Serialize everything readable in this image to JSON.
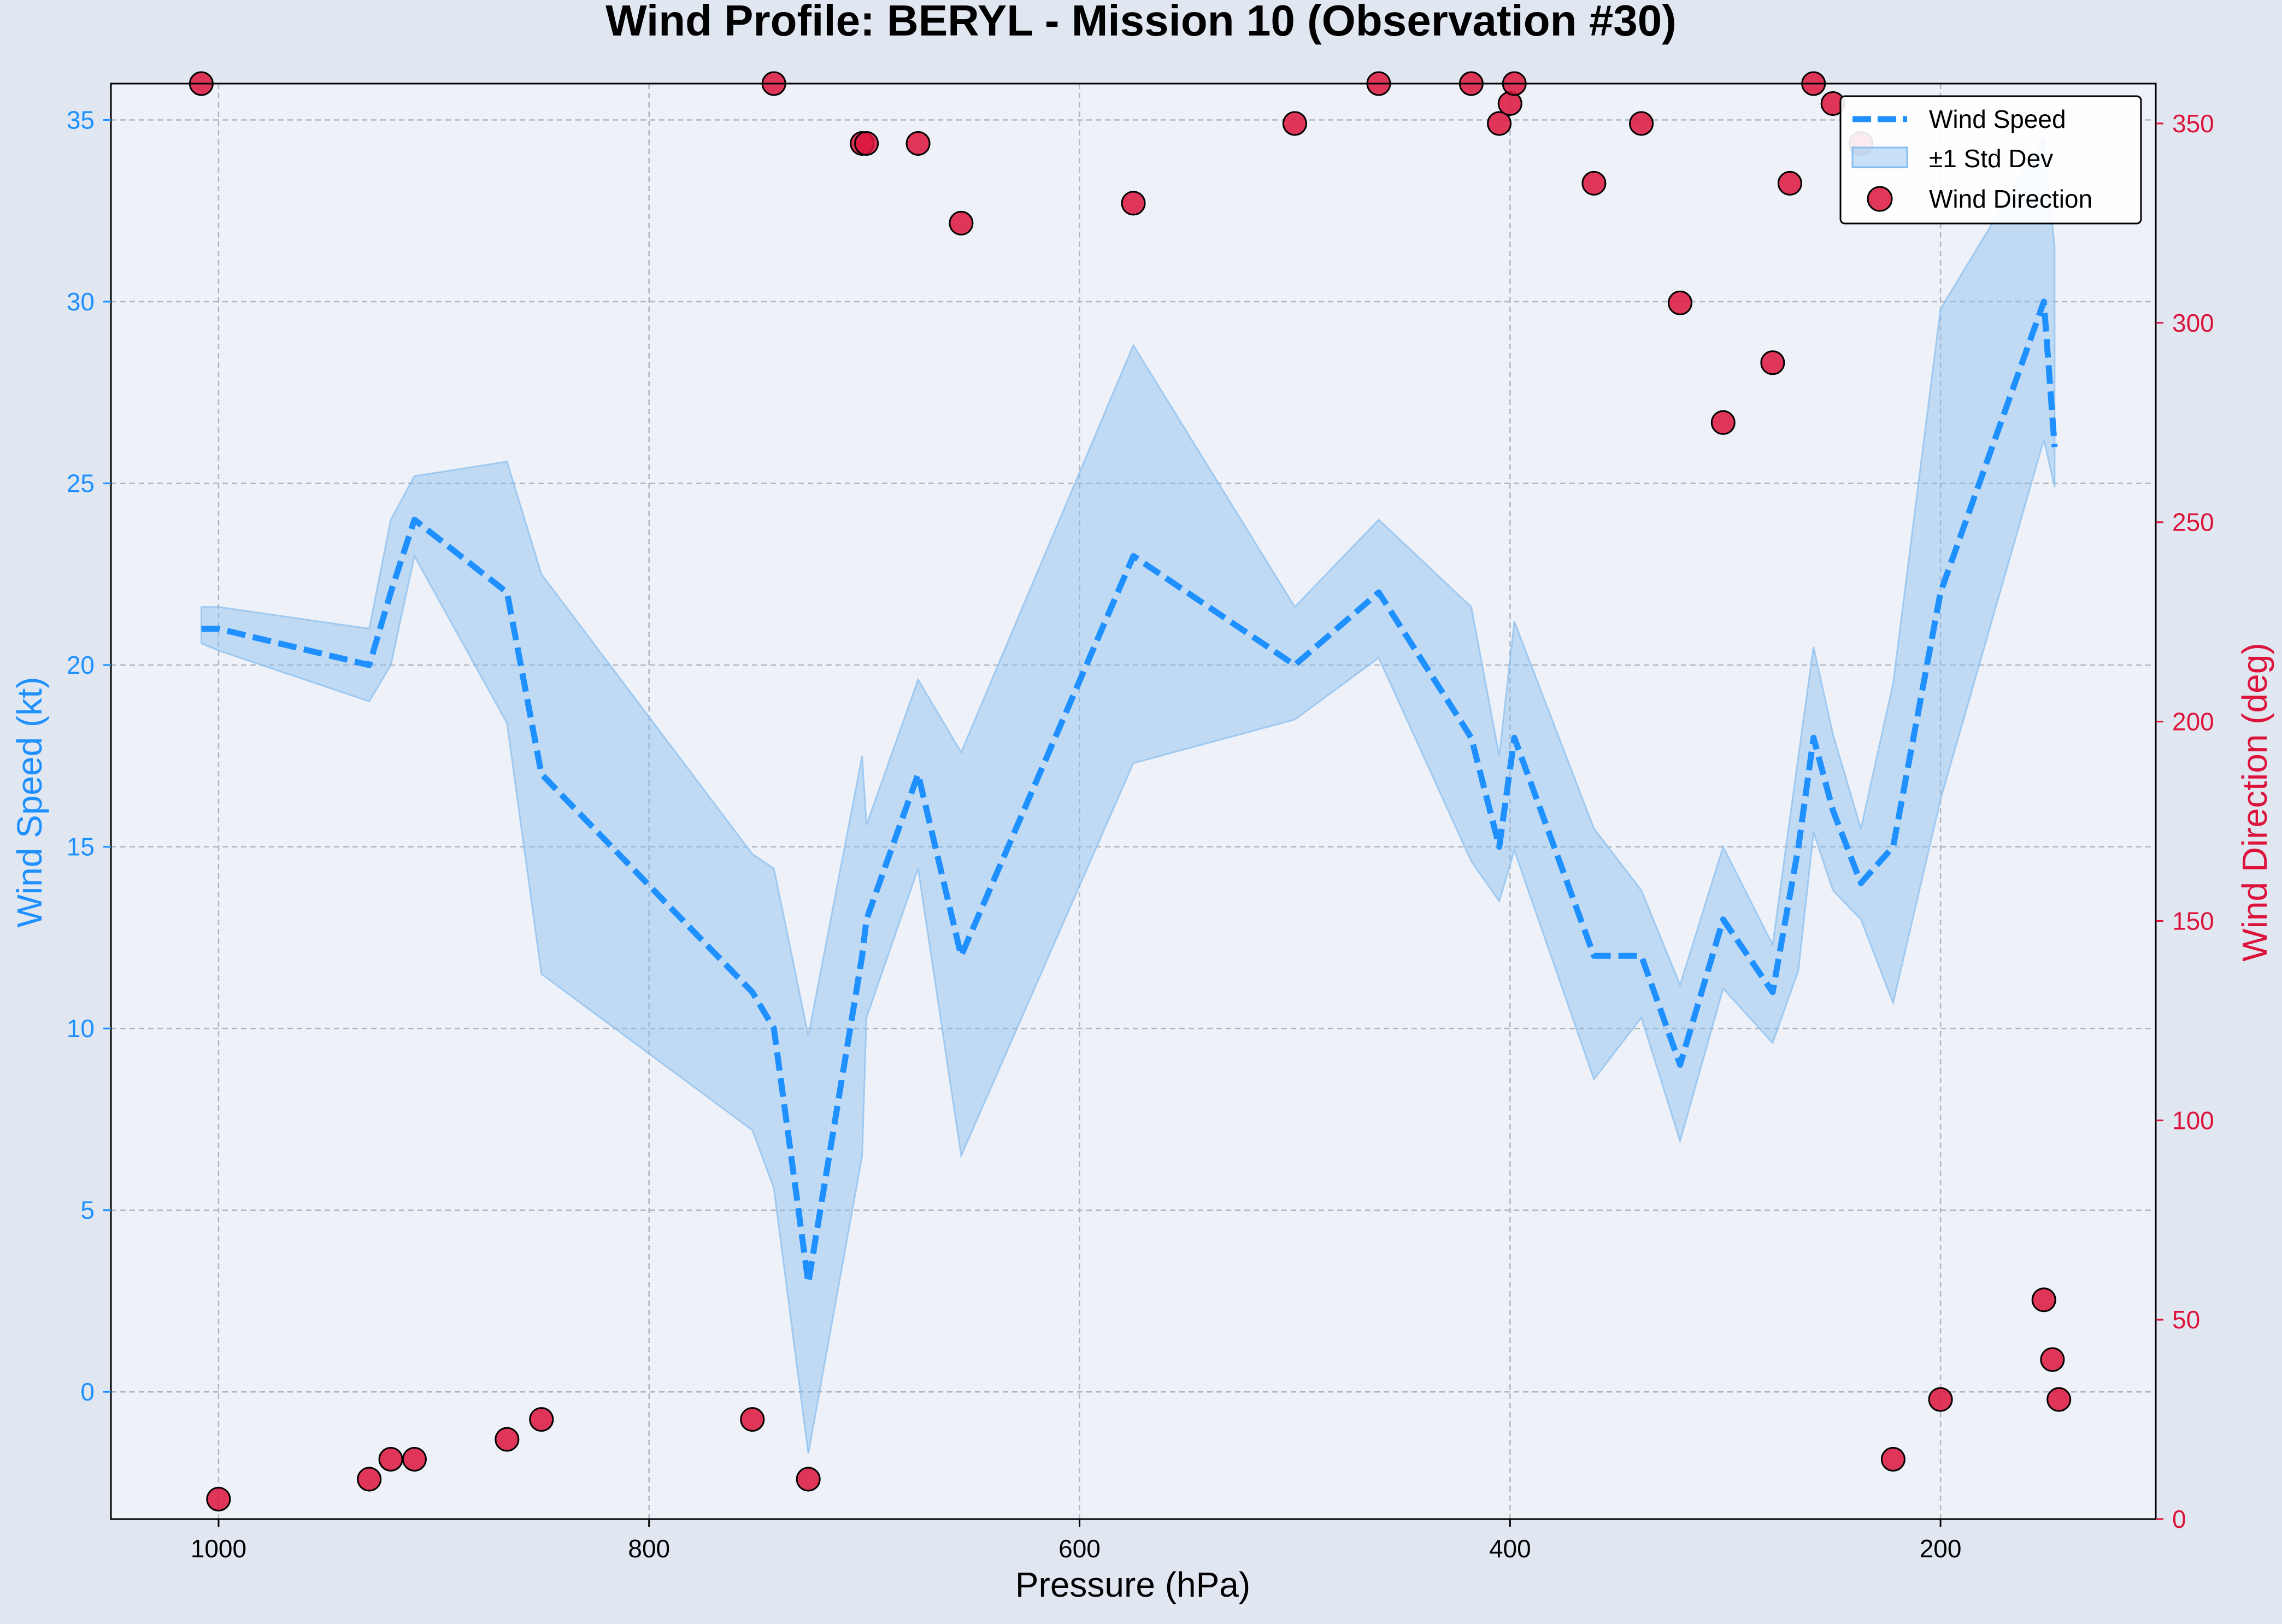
{
  "chart_data": {
    "type": "line",
    "title": "Wind Profile: BERYL - Mission 10 (Observation #30)",
    "xlabel": "Pressure (hPa)",
    "ylabel_left": "Wind Speed (kt)",
    "ylabel_right": "Wind Direction (deg)",
    "x_inverted": true,
    "xlim": [
      1050,
      100
    ],
    "ylim_left": [
      -3.5,
      36
    ],
    "ylim_right": [
      0,
      360
    ],
    "xticks": [
      1000,
      800,
      600,
      400,
      200
    ],
    "yticks_left": [
      0,
      5,
      10,
      15,
      20,
      25,
      30,
      35
    ],
    "yticks_right": [
      0,
      50,
      100,
      150,
      200,
      250,
      300,
      350
    ],
    "grid": true,
    "legend_position": "top-right",
    "colors": {
      "speed": "#1e90ff",
      "band": "#87bdf0",
      "direction": "#dc143c",
      "plot_bg": "#eef2f8",
      "figure_bg": "#e1e7f0",
      "grid": "#b0b6bf"
    },
    "legend": [
      "Wind Speed",
      "±1 Std Dev",
      "Wind Direction"
    ],
    "series": [
      {
        "name": "Wind Speed",
        "style": "dashed",
        "x": [
          1008,
          1000,
          930,
          920,
          909,
          866,
          850,
          752,
          742,
          726,
          701,
          699,
          675,
          655,
          575,
          500,
          461,
          418,
          405,
          398,
          361,
          339,
          321,
          301,
          278,
          266,
          259,
          250,
          237,
          222,
          200,
          152,
          147
        ],
        "y": [
          21,
          21,
          20,
          22,
          24,
          22,
          17,
          11,
          10,
          3,
          12,
          13,
          17,
          12,
          23,
          20,
          22,
          18,
          15,
          18,
          12,
          12,
          9,
          13,
          11,
          15,
          18,
          16,
          14,
          15,
          22,
          30,
          26
        ]
      },
      {
        "name": "±1 Std Dev",
        "x": [
          1008,
          1000,
          930,
          920,
          909,
          866,
          850,
          752,
          742,
          726,
          701,
          699,
          675,
          655,
          575,
          500,
          461,
          418,
          405,
          398,
          361,
          339,
          321,
          301,
          278,
          266,
          259,
          250,
          237,
          222,
          200,
          152,
          147
        ],
        "upper": [
          21.6,
          21.6,
          21.0,
          24.0,
          25.2,
          25.6,
          22.5,
          14.8,
          14.4,
          9.8,
          17.5,
          15.6,
          19.6,
          17.6,
          28.8,
          21.6,
          24.0,
          21.6,
          17.5,
          21.2,
          15.5,
          13.8,
          11.2,
          15.0,
          12.3,
          17.5,
          20.5,
          18.1,
          15.5,
          19.5,
          29.8,
          34.5,
          31.5
        ],
        "lower": [
          20.6,
          20.4,
          19.0,
          20.0,
          23.0,
          18.4,
          11.5,
          7.2,
          5.6,
          -1.7,
          6.5,
          10.3,
          14.4,
          6.5,
          17.3,
          18.5,
          20.2,
          14.6,
          13.5,
          14.9,
          8.6,
          10.3,
          6.9,
          11.1,
          9.6,
          11.6,
          15.4,
          13.8,
          13.0,
          10.7,
          16.3,
          26.2,
          24.9
        ]
      },
      {
        "name": "Wind Direction",
        "axis": "right",
        "x": [
          1008,
          1000,
          930,
          920,
          909,
          866,
          850,
          752,
          742,
          726,
          701,
          699,
          675,
          655,
          575,
          500,
          461,
          418,
          405,
          400,
          398,
          361,
          339,
          321,
          301,
          278,
          270,
          259,
          250,
          237,
          222,
          200,
          152,
          148,
          145
        ],
        "y": [
          360,
          5,
          10,
          15,
          15,
          20,
          25,
          25,
          360,
          10,
          345,
          345,
          345,
          325,
          330,
          350,
          360,
          360,
          350,
          355,
          360,
          335,
          350,
          305,
          275,
          290,
          335,
          360,
          355,
          345,
          15,
          30,
          55,
          40,
          30
        ]
      }
    ]
  }
}
